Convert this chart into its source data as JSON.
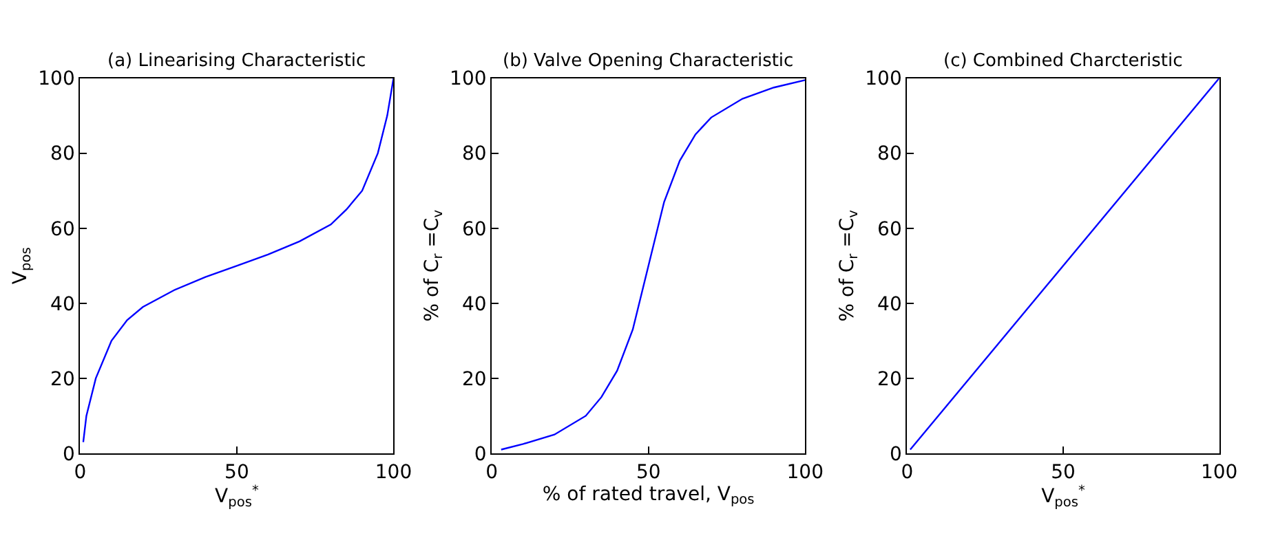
{
  "chart_data": [
    {
      "type": "line",
      "title": "(a) Linearising Characteristic",
      "xlabel": "V$_{pos}$$^{*}$",
      "ylabel": "V$_{pos}$",
      "x": [
        1,
        2,
        5,
        10,
        15,
        20,
        30,
        40,
        50,
        60,
        70,
        80,
        85,
        90,
        95,
        98,
        100
      ],
      "series": [
        {
          "color": "#0000ff",
          "values": [
            3,
            10,
            20,
            30,
            35.5,
            39,
            43.5,
            47,
            50,
            53,
            56.5,
            61,
            65,
            70,
            80,
            90,
            100
          ]
        }
      ],
      "xlim": [
        0,
        100
      ],
      "ylim": [
        0,
        100
      ],
      "xticks": [
        0,
        50,
        100
      ],
      "yticks": [
        0,
        20,
        40,
        60,
        80,
        100
      ]
    },
    {
      "type": "line",
      "title": "(b) Valve Opening Characteristic",
      "xlabel": "% of rated travel, V$_{pos}$",
      "ylabel": "% of C$_{r}$ =C$_{v}$",
      "x": [
        3,
        10,
        20,
        30,
        35,
        40,
        45,
        50,
        55,
        60,
        65,
        70,
        80,
        90,
        100
      ],
      "series": [
        {
          "color": "#0000ff",
          "values": [
            1,
            2.5,
            5,
            10,
            15,
            22,
            33,
            50,
            67,
            78,
            85,
            89.5,
            94.5,
            97.5,
            99.5
          ]
        }
      ],
      "xlim": [
        0,
        100
      ],
      "ylim": [
        0,
        100
      ],
      "xticks": [
        0,
        50,
        100
      ],
      "yticks": [
        0,
        20,
        40,
        60,
        80,
        100
      ]
    },
    {
      "type": "line",
      "title": "(c) Combined Charcteristic",
      "xlabel": "V$_{pos}$$^{*}$",
      "ylabel": "% of C$_{r}$ =C$_{v}$",
      "x": [
        1,
        100
      ],
      "series": [
        {
          "color": "#0000ff",
          "values": [
            1,
            100
          ]
        }
      ],
      "xlim": [
        0,
        100
      ],
      "ylim": [
        0,
        100
      ],
      "xticks": [
        0,
        50,
        100
      ],
      "yticks": [
        0,
        20,
        40,
        60,
        80,
        100
      ]
    }
  ]
}
